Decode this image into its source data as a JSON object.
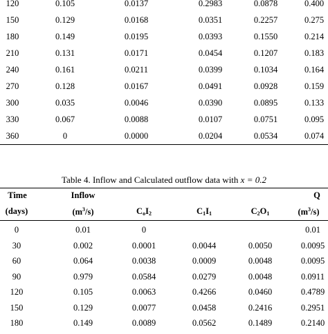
{
  "table3": {
    "rows": [
      [
        "120",
        "0.105",
        "0.0137",
        "0.2983",
        "0.0878",
        "0.400"
      ],
      [
        "150",
        "0.129",
        "0.0168",
        "0.0351",
        "0.2257",
        "0.275"
      ],
      [
        "180",
        "0.149",
        "0.0195",
        "0.0393",
        "0.1550",
        "0.214"
      ],
      [
        "210",
        "0.131",
        "0.0171",
        "0.0454",
        "0.1207",
        "0.183"
      ],
      [
        "240",
        "0.161",
        "0.0211",
        "0.0399",
        "0.1034",
        "0.164"
      ],
      [
        "270",
        "0.128",
        "0.0167",
        "0.0491",
        "0.0928",
        "0.159"
      ],
      [
        "300",
        "0.035",
        "0.0046",
        "0.0390",
        "0.0895",
        "0.133"
      ],
      [
        "330",
        "0.067",
        "0.0088",
        "0.0107",
        "0.0751",
        "0.095"
      ],
      [
        "360",
        "0",
        "0.0000",
        "0.0204",
        "0.0534",
        "0.074"
      ]
    ]
  },
  "table4": {
    "caption_prefix": "Table 4.  Inflow and Calculated outflow data with ",
    "caption_var": "x = 0.2",
    "headers": {
      "time": "Time",
      "time_unit": "(days)",
      "inflow": "Inflow",
      "inflow_unit_pre": "(m",
      "inflow_unit_sup": "3",
      "inflow_unit_post": "/s)",
      "c0i2_c": "C",
      "c0i2_s1": "o",
      "c0i2_i": "I",
      "c0i2_s2": "2",
      "c1i1_c": "C",
      "c1i1_s1": "1",
      "c1i1_i": "I",
      "c1i1_s2": "1",
      "c2o1_c": "C",
      "c2o1_s1": "2",
      "c2o1_o": "O",
      "c2o1_s2": "1",
      "q": "Q",
      "q_unit_pre": "(m",
      "q_unit_sup": "3",
      "q_unit_post": "/s)"
    },
    "rows": [
      [
        "0",
        "0.01",
        "0",
        "",
        "",
        "0.01"
      ],
      [
        "30",
        "0.002",
        "0.0001",
        "0.0044",
        "0.0050",
        "0.0095"
      ],
      [
        "60",
        "0.064",
        "0.0038",
        "0.0009",
        "0.0048",
        "0.0095"
      ],
      [
        "90",
        "0.979",
        "0.0584",
        "0.0279",
        "0.0048",
        "0.0911"
      ],
      [
        "120",
        "0.105",
        "0.0063",
        "0.4266",
        "0.0460",
        "0.4789"
      ],
      [
        "150",
        "0.129",
        "0.0077",
        "0.0458",
        "0.2416",
        "0.2951"
      ],
      [
        "180",
        "0.149",
        "0.0089",
        "0.0562",
        "0.1489",
        "0.2140"
      ]
    ]
  }
}
